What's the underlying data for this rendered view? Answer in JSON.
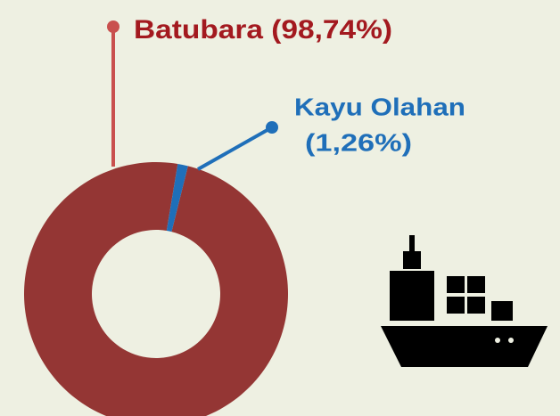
{
  "chart_data": {
    "type": "pie",
    "donut": true,
    "categories": [
      "Batubara",
      "Kayu Olahan"
    ],
    "values": [
      98.74,
      1.26
    ],
    "value_labels": [
      "(98,74%)",
      "(1,26%)"
    ],
    "colors": [
      "#943634",
      "#1f6fb9"
    ]
  }
}
